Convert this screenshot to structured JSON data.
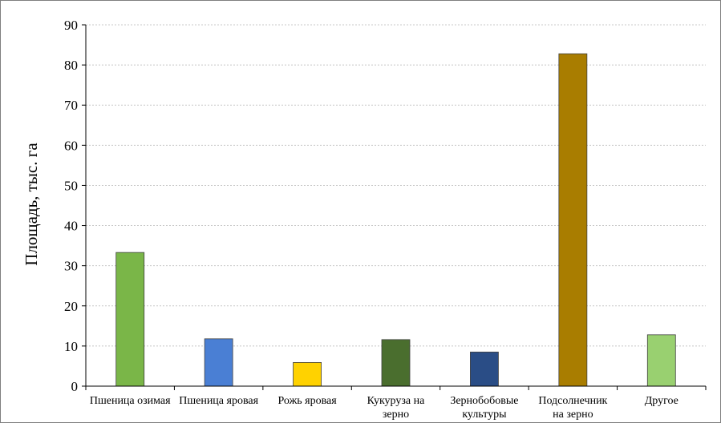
{
  "chart_data": {
    "type": "bar",
    "title": "",
    "xlabel": "",
    "ylabel": "Площадь, тыс. га",
    "ylim": [
      0,
      90
    ],
    "yticks": [
      0,
      10,
      20,
      30,
      40,
      50,
      60,
      70,
      80,
      90
    ],
    "grid": true,
    "legend": "none",
    "categories": [
      [
        "Пшеница озимая"
      ],
      [
        "Пшеница яровая"
      ],
      [
        "Рожь яровая"
      ],
      [
        "Кукуруза на",
        "зерно"
      ],
      [
        "Зернобобовые",
        "культуры"
      ],
      [
        "Подсолнечник",
        "на зерно"
      ],
      [
        "Другое"
      ]
    ],
    "values": [
      33.3,
      11.8,
      5.9,
      11.6,
      8.5,
      82.8,
      12.8
    ],
    "colors": [
      "#7ab648",
      "#4a7fd4",
      "#ffd200",
      "#4a6e2e",
      "#2a4d86",
      "#a97d00",
      "#99d070"
    ]
  }
}
